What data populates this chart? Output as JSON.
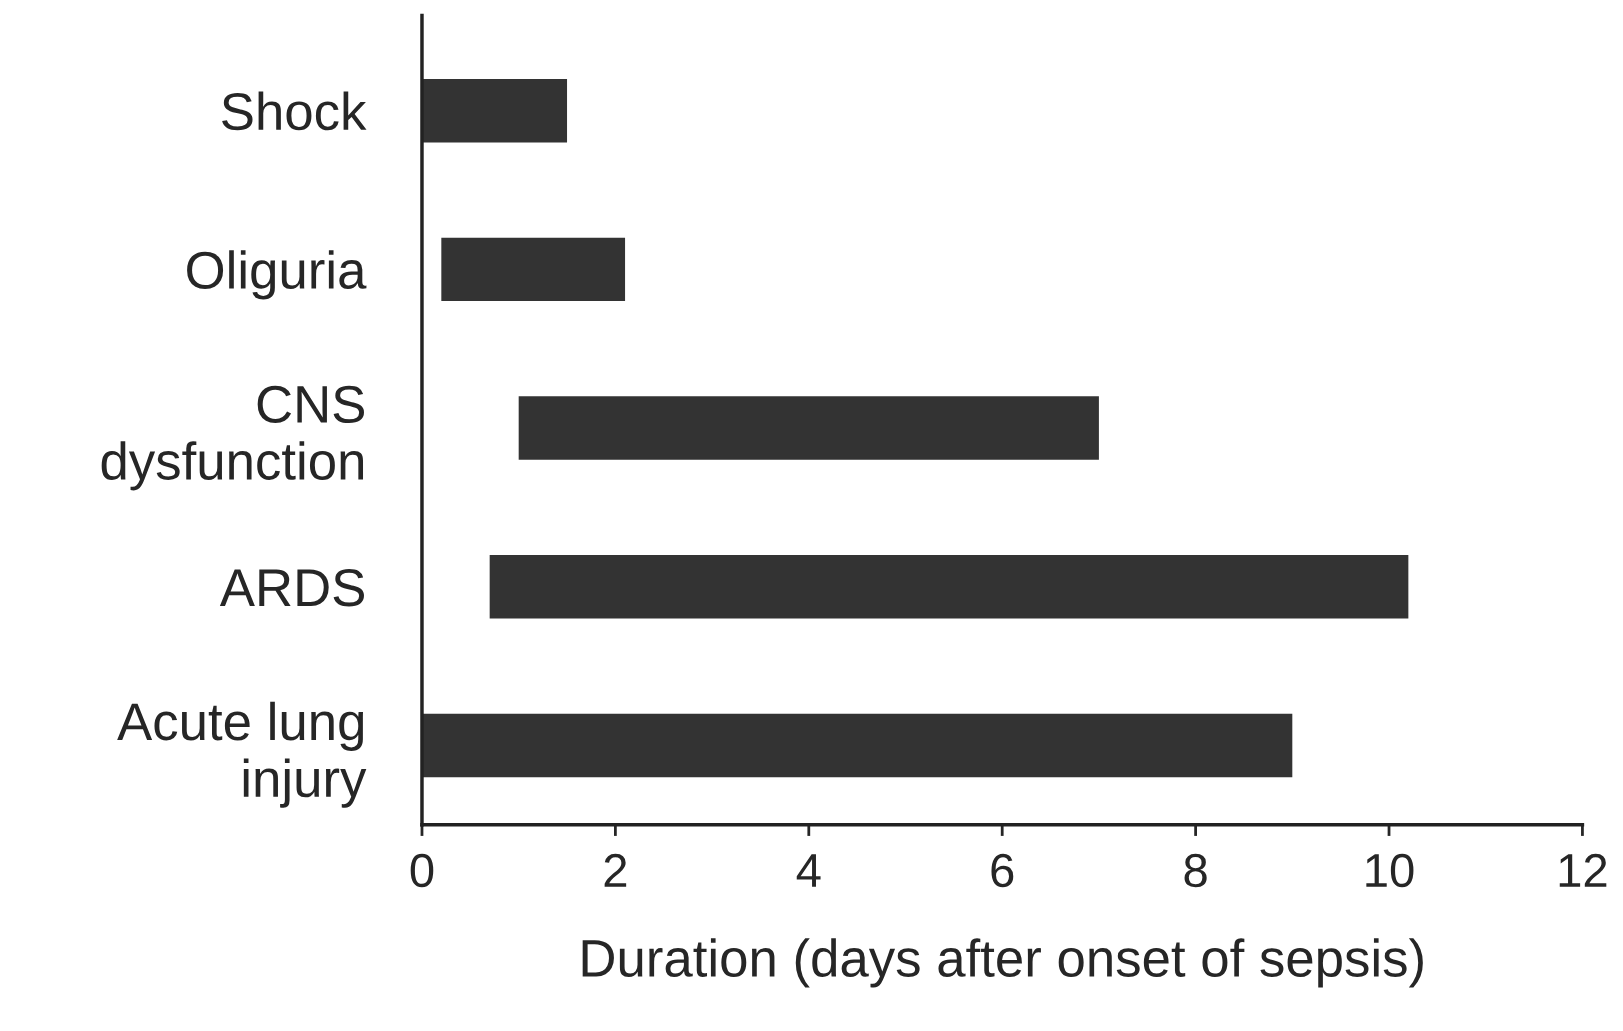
{
  "chart_data": {
    "type": "bar",
    "orientation": "horizontal",
    "xlabel": "Duration (days after onset of sepsis)",
    "categories": [
      "Shock",
      "Oliguria",
      "CNS\ndysfunction",
      "ARDS",
      "Acute lung\ninjury"
    ],
    "base": [
      0,
      0.2,
      1.0,
      0.7,
      0
    ],
    "values": [
      1.5,
      1.9,
      6.0,
      9.5,
      9.0
    ],
    "color": "#333333",
    "xlim": [
      0,
      12
    ],
    "xticks": [
      0,
      2,
      4,
      6,
      8,
      10,
      12
    ]
  }
}
